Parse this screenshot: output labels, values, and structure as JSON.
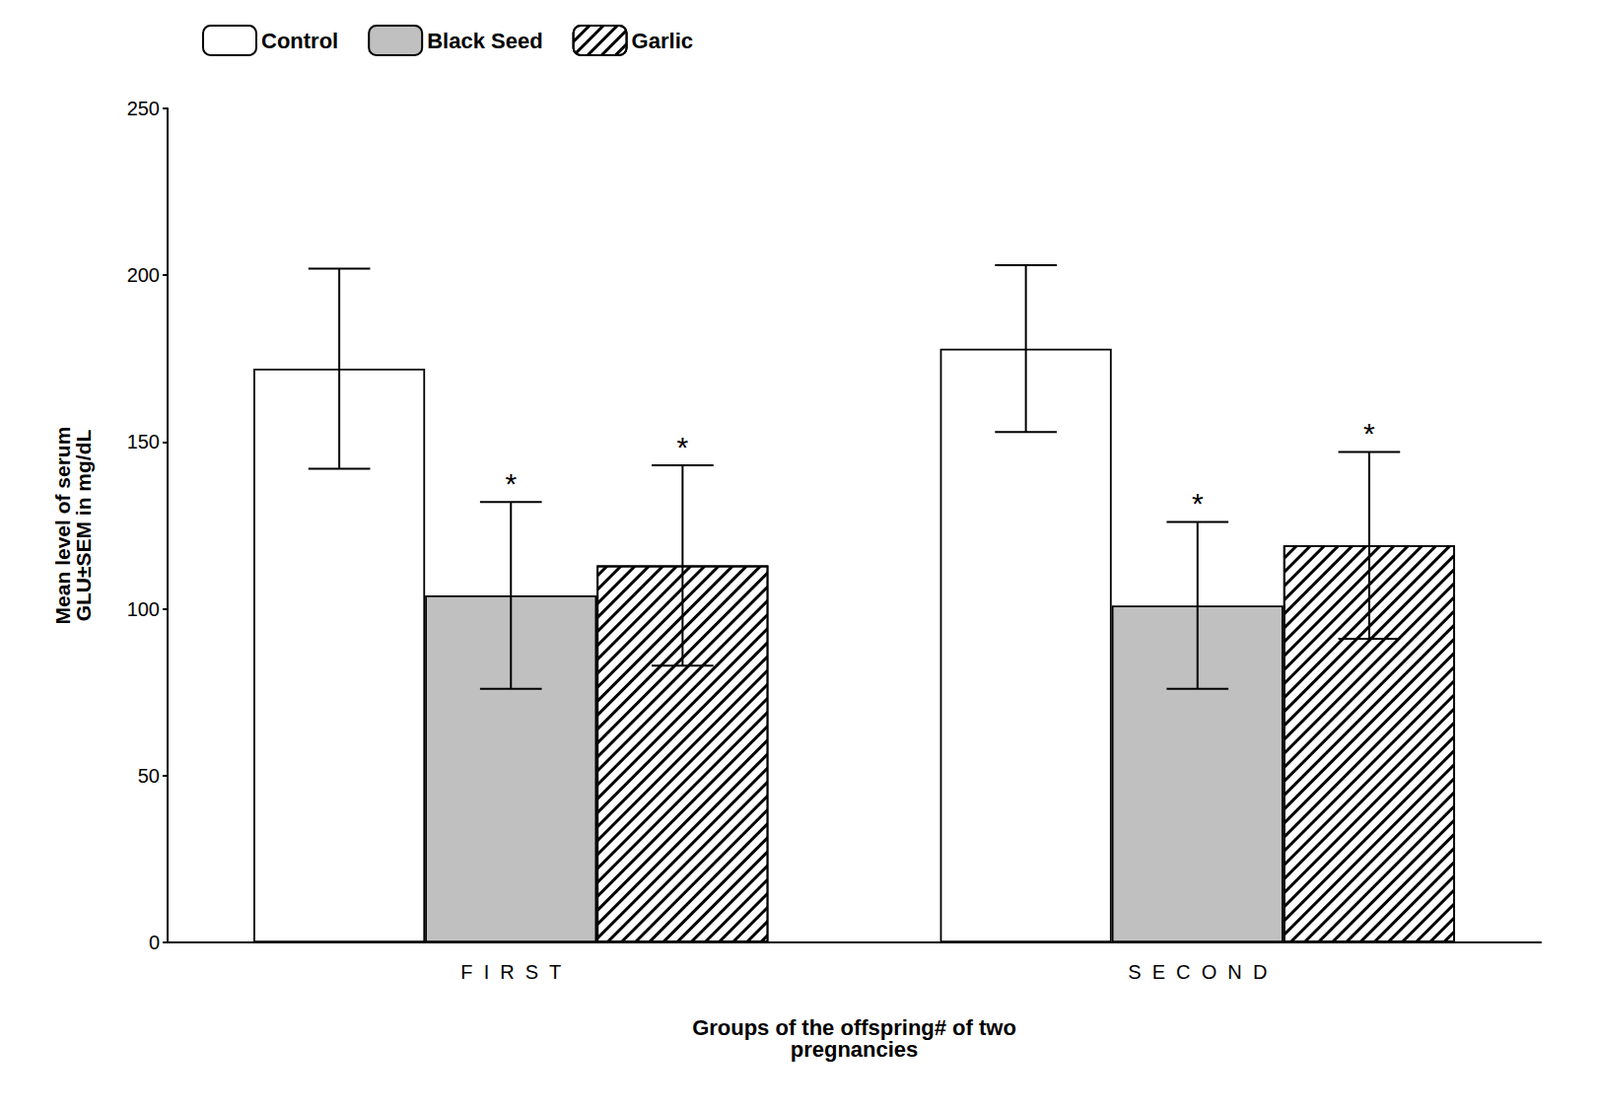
{
  "chart_data": {
    "type": "bar",
    "categories": [
      "F  I  R  S  T",
      "S  E  C  O  N  D"
    ],
    "series": [
      {
        "name": "Control",
        "color": "white",
        "values": [
          172,
          178
        ],
        "errors": [
          30,
          25
        ]
      },
      {
        "name": "Black Seed",
        "color": "#c0c0c0",
        "values": [
          104,
          101
        ],
        "errors": [
          28,
          25
        ],
        "annotations": [
          "*",
          "*"
        ]
      },
      {
        "name": "Garlic",
        "color": "white",
        "values": [
          113,
          119
        ],
        "errors": [
          30,
          28
        ],
        "annotations": [
          "*",
          "*"
        ]
      }
    ],
    "ylabel": "Mean level of serum\nGLU±SEM in mg/dL",
    "xlabel": "Groups of the offspring# of two\npregnancies",
    "ylim": [
      0,
      250
    ],
    "yticks": [
      0,
      50,
      100,
      150,
      200,
      250
    ],
    "legend": "upper left",
    "grid": false
  }
}
